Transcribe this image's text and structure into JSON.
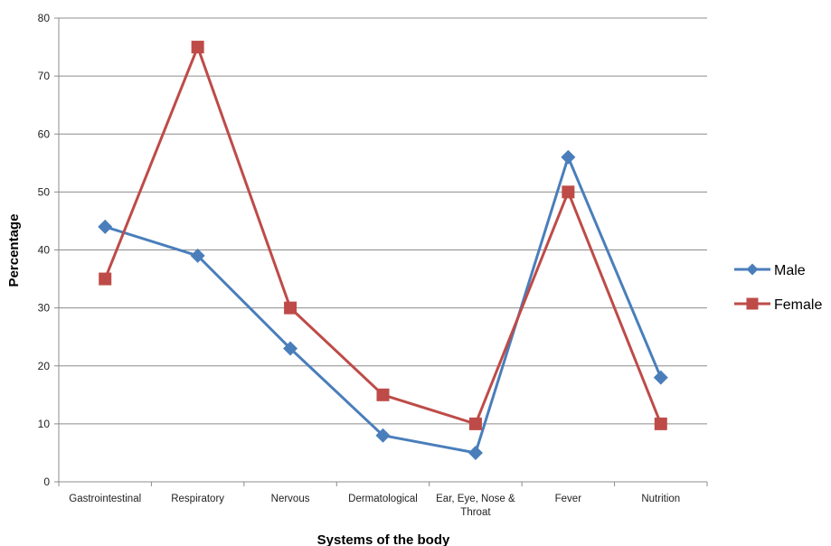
{
  "chart_data": {
    "type": "line",
    "title": "",
    "xlabel": "Systems of the body",
    "ylabel": "Percentage",
    "categories": [
      "Gastrointestinal",
      "Respiratory",
      "Nervous",
      "Dermatological",
      "Ear, Eye, Nose & Throat",
      "Fever",
      "Nutrition"
    ],
    "category_lines": [
      [
        "Gastrointestinal"
      ],
      [
        "Respiratory"
      ],
      [
        "Nervous"
      ],
      [
        "Dermatological"
      ],
      [
        "Ear, Eye, Nose &",
        "Throat"
      ],
      [
        "Fever"
      ],
      [
        "Nutrition"
      ]
    ],
    "ylim": [
      0,
      80
    ],
    "yticks": [
      0,
      10,
      20,
      30,
      40,
      50,
      60,
      70,
      80
    ],
    "grid": true,
    "legend_position": "right",
    "series": [
      {
        "name": "Male",
        "color": "#4a7ebb",
        "marker": "diamond",
        "values": [
          44,
          39,
          23,
          8,
          5,
          56,
          18
        ]
      },
      {
        "name": "Female",
        "color": "#be4b48",
        "marker": "square",
        "values": [
          35,
          75,
          30,
          15,
          10,
          50,
          10
        ]
      }
    ]
  }
}
